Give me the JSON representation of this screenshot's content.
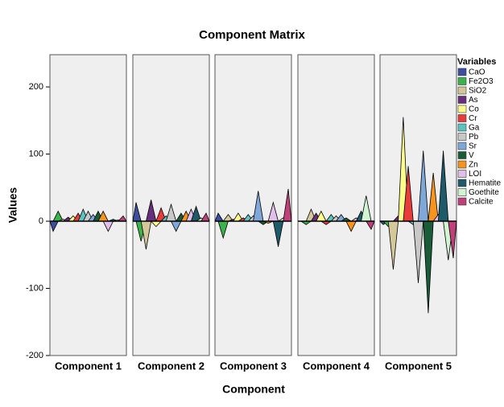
{
  "chart_data": {
    "type": "area",
    "title": "Component Matrix",
    "x_label": "Component",
    "y_label": "Values",
    "legend_title": "Variables",
    "categories": [
      "Component 1",
      "Component 2",
      "Component 3",
      "Component 4",
      "Component 5"
    ],
    "ylim": [
      -200,
      248
    ],
    "yticks": [
      -200,
      -100,
      0,
      100,
      200
    ],
    "series": [
      {
        "name": "CaO",
        "color": "#3d4ea0",
        "values": [
          -15,
          28,
          12,
          0,
          -5
        ]
      },
      {
        "name": "Fe2O3",
        "color": "#3cb34a",
        "values": [
          15,
          -30,
          -25,
          -5,
          -8
        ]
      },
      {
        "name": "SiO2",
        "color": "#d4c89a",
        "values": [
          3,
          -42,
          10,
          18,
          -72
        ]
      },
      {
        "name": "As",
        "color": "#6a2f7c",
        "values": [
          6,
          32,
          3,
          12,
          8
        ]
      },
      {
        "name": "Co",
        "color": "#fefe8a",
        "values": [
          8,
          -8,
          12,
          15,
          155
        ]
      },
      {
        "name": "Cr",
        "color": "#e83c3c",
        "values": [
          12,
          20,
          5,
          -5,
          82
        ]
      },
      {
        "name": "Ga",
        "color": "#5cc4c0",
        "values": [
          18,
          8,
          10,
          10,
          -5
        ]
      },
      {
        "name": "Pb",
        "color": "#c8c8c8",
        "values": [
          15,
          25,
          8,
          8,
          -92
        ]
      },
      {
        "name": "Sr",
        "color": "#7fa8d8",
        "values": [
          10,
          -15,
          45,
          10,
          105
        ]
      },
      {
        "name": "V",
        "color": "#1a5c38",
        "values": [
          15,
          12,
          -5,
          5,
          -137
        ]
      },
      {
        "name": "Zn",
        "color": "#f7941d",
        "values": [
          15,
          15,
          -3,
          -15,
          72
        ]
      },
      {
        "name": "LOI",
        "color": "#e0c0e8",
        "values": [
          -15,
          18,
          28,
          5,
          10
        ]
      },
      {
        "name": "Hematite",
        "color": "#1e5a6a",
        "values": [
          3,
          22,
          -38,
          15,
          105
        ]
      },
      {
        "name": "Goethite",
        "color": "#d0f5d0",
        "values": [
          2,
          5,
          5,
          38,
          -58
        ]
      },
      {
        "name": "Calcite",
        "color": "#c0407a",
        "values": [
          8,
          12,
          48,
          -12,
          -55
        ]
      }
    ]
  }
}
